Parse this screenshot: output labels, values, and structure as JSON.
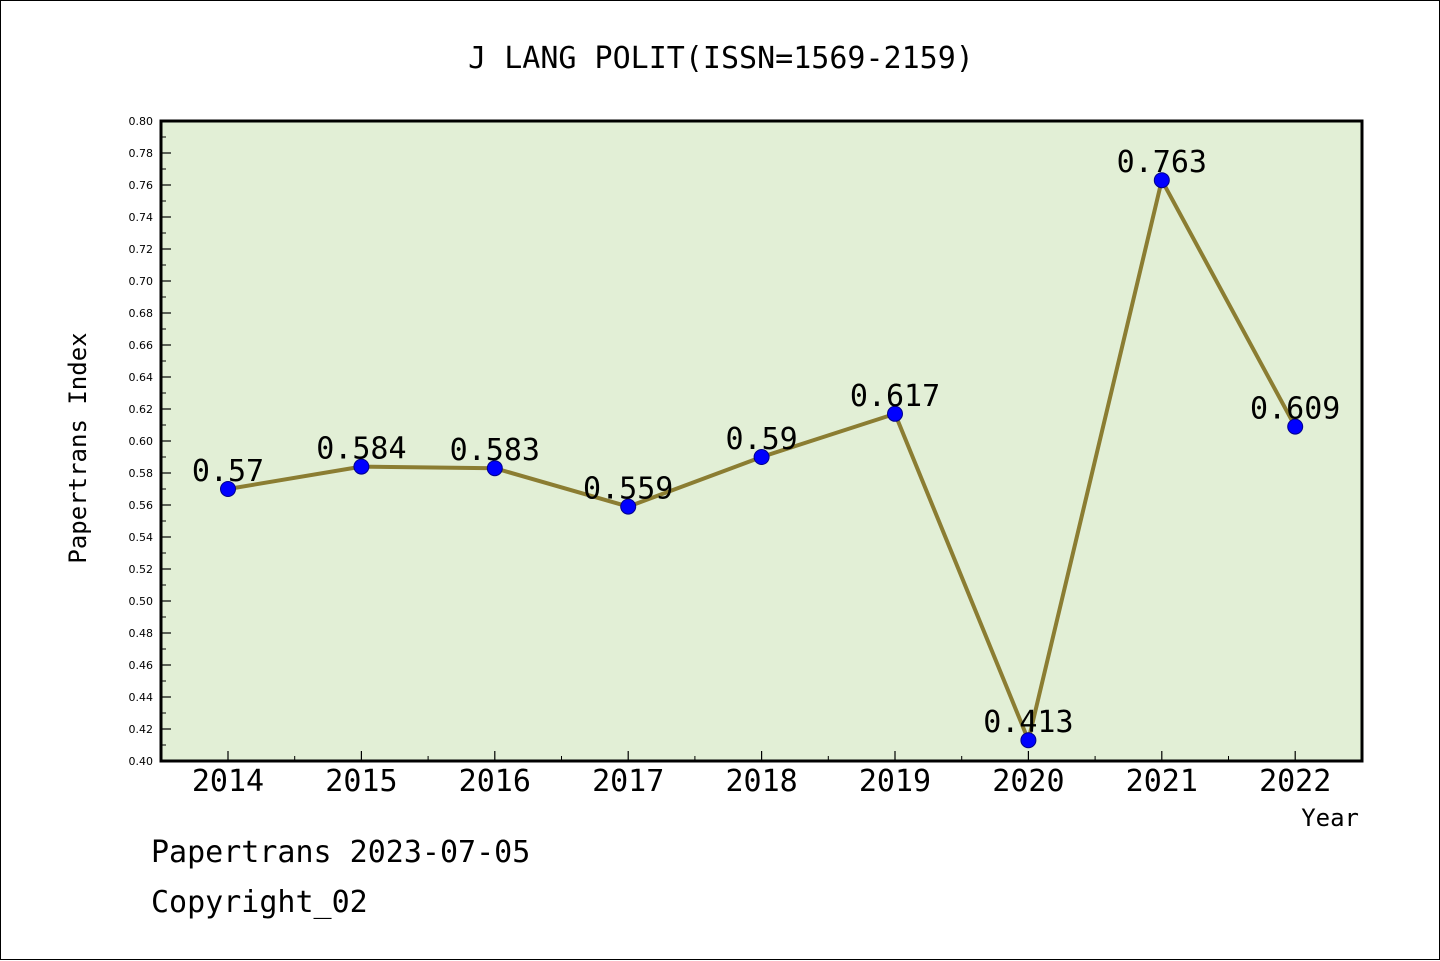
{
  "chart_data": {
    "type": "line",
    "title": "J LANG POLIT(ISSN=1569-2159)",
    "xlabel": "Year",
    "ylabel": "Papertrans Index",
    "categories": [
      "2014",
      "2015",
      "2016",
      "2017",
      "2018",
      "2019",
      "2020",
      "2021",
      "2022"
    ],
    "series": [
      {
        "values": [
          0.57,
          0.584,
          0.583,
          0.559,
          0.59,
          0.617,
          0.413,
          0.763,
          0.609
        ],
        "labels": [
          "0.57",
          "0.584",
          "0.583",
          "0.559",
          "0.59",
          "0.617",
          "0.413",
          "0.763",
          "0.609"
        ]
      }
    ],
    "ylim": [
      0.4,
      0.8
    ],
    "yticks": [
      "0.40",
      "0.42",
      "0.44",
      "0.46",
      "0.48",
      "0.50",
      "0.52",
      "0.54",
      "0.56",
      "0.58",
      "0.60",
      "0.62",
      "0.64",
      "0.66",
      "0.68",
      "0.70",
      "0.72",
      "0.74",
      "0.76",
      "0.78",
      "0.80"
    ],
    "grid": false,
    "colors": {
      "plot_background": "#e2efd6",
      "line": "#8b7d32",
      "marker": "#0000ff"
    }
  },
  "footer": {
    "date_line": "Papertrans 2023-07-05",
    "copyright": "Copyright_02"
  }
}
